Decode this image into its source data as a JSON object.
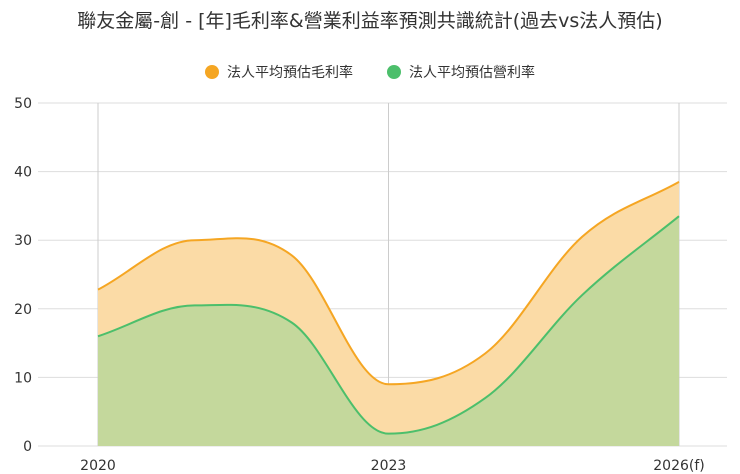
{
  "title": "聯友金屬-創 - [年]毛利率&營業利益率預測共識統計(過去vs法人預估)",
  "chart_data": {
    "type": "area",
    "categories": [
      "2020",
      "2021",
      "2022",
      "2023",
      "2024",
      "2025",
      "2026(f)"
    ],
    "x_tick_labels": [
      "2020",
      "2023",
      "2026(f)"
    ],
    "y_ticks": [
      "0",
      "10",
      "20",
      "30",
      "40",
      "50"
    ],
    "ylim": [
      0,
      50
    ],
    "grid": true,
    "legend_position": "top-center",
    "series": [
      {
        "name": "法人平均預估毛利率",
        "color": "#f5a623",
        "fill": "#fbdba6",
        "values": [
          22.8,
          30.0,
          27.8,
          9.0,
          13.5,
          30.5,
          38.5
        ]
      },
      {
        "name": "法人平均預估營利率",
        "color": "#4cbf6b",
        "fill": "#c4d89c",
        "values": [
          16.0,
          20.5,
          18.0,
          1.8,
          7.0,
          22.0,
          33.5
        ]
      }
    ]
  }
}
